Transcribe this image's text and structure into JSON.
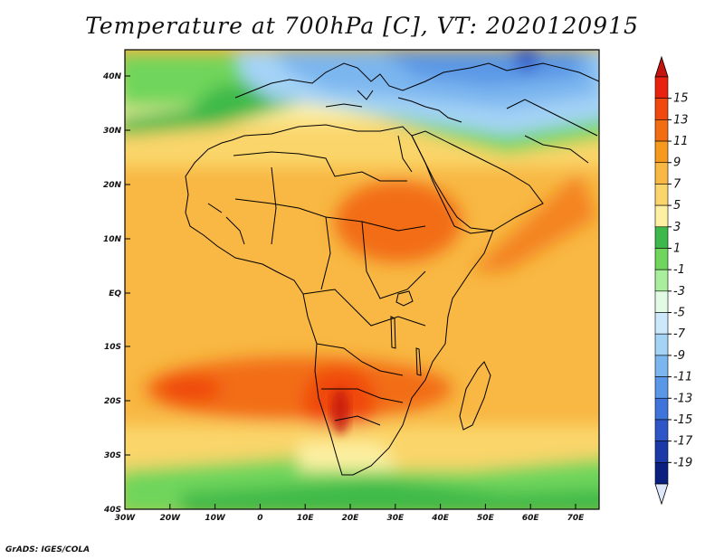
{
  "title": "Temperature at 700hPa [C], VT: 2020120915",
  "credit": "GrADS: IGES/COLA",
  "map": {
    "lon_range": [
      -30,
      75
    ],
    "lat_range": [
      -40,
      45
    ],
    "x_ticks": [
      "30W",
      "20W",
      "10W",
      "0",
      "10E",
      "20E",
      "30E",
      "40E",
      "50E",
      "60E",
      "70E"
    ],
    "y_ticks": [
      "40N",
      "30N",
      "20N",
      "10N",
      "EQ",
      "10S",
      "20S",
      "30S",
      "40S"
    ]
  },
  "colorbar": {
    "labels": [
      "15",
      "13",
      "11",
      "9",
      "7",
      "5",
      "3",
      "1",
      "-1",
      "-3",
      "-5",
      "-7",
      "-9",
      "-11",
      "-13",
      "-15",
      "-17",
      "-19"
    ],
    "colors": [
      "#e8220e",
      "#f0480e",
      "#f26d12",
      "#f69a1e",
      "#f8b843",
      "#fad56b",
      "#fdf0a2",
      "#3cb94a",
      "#6fd55c",
      "#a8ee9c",
      "#e2fbe4",
      "#cde8fb",
      "#a4d3f6",
      "#7bb6ef",
      "#5a97e6",
      "#3f74da",
      "#2f56c6",
      "#1b3aa8",
      "#0a1f7e"
    ],
    "top_arrow_color": "#c3140e",
    "bottom_arrow_color": "#dfe7fb"
  }
}
